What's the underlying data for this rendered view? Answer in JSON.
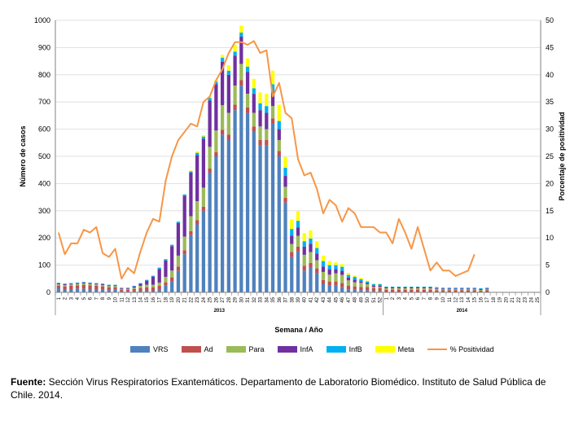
{
  "chart_data": {
    "type": "bar",
    "stacked": true,
    "xlabel": "Semana / Año",
    "ylabel": "Número de casos",
    "y2label": "Porcentaje de positividad",
    "ylim": [
      0,
      1000
    ],
    "yticks": [
      0,
      100,
      200,
      300,
      400,
      500,
      600,
      700,
      800,
      900,
      1000
    ],
    "y2lim": [
      0,
      50
    ],
    "y2ticks": [
      0,
      5,
      10,
      15,
      20,
      25,
      30,
      35,
      40,
      45,
      50
    ],
    "grid": true,
    "legend_position": "bottom",
    "years": [
      {
        "label": "2013",
        "weeks": 52
      },
      {
        "label": "2014",
        "weeks": 25
      }
    ],
    "categories": [
      "1",
      "2",
      "3",
      "4",
      "5",
      "6",
      "7",
      "8",
      "9",
      "10",
      "11",
      "12",
      "13",
      "14",
      "15",
      "16",
      "17",
      "18",
      "19",
      "20",
      "21",
      "22",
      "23",
      "24",
      "25",
      "26",
      "27",
      "28",
      "29",
      "30",
      "31",
      "32",
      "33",
      "34",
      "35",
      "36",
      "37",
      "38",
      "39",
      "40",
      "41",
      "42",
      "43",
      "44",
      "45",
      "46",
      "47",
      "48",
      "49",
      "50",
      "51",
      "52",
      "1",
      "2",
      "3",
      "4",
      "5",
      "6",
      "7",
      "8",
      "9",
      "10",
      "11",
      "12",
      "13",
      "14",
      "15",
      "16",
      "17",
      "18",
      "19",
      "20",
      "21",
      "22",
      "23",
      "24",
      "25"
    ],
    "series": [
      {
        "name": "VRS",
        "color": "#4f81bd",
        "values": [
          15,
          12,
          12,
          14,
          14,
          12,
          12,
          10,
          8,
          10,
          4,
          4,
          4,
          6,
          6,
          6,
          12,
          25,
          40,
          80,
          140,
          210,
          250,
          300,
          440,
          500,
          580,
          560,
          670,
          760,
          660,
          590,
          540,
          540,
          620,
          500,
          330,
          130,
          150,
          80,
          90,
          70,
          30,
          25,
          25,
          20,
          10,
          10,
          8,
          8,
          5,
          5,
          0,
          0,
          0,
          0,
          0,
          0,
          0,
          0,
          0,
          0,
          0,
          0,
          0,
          0,
          0,
          0,
          0,
          0,
          0,
          0,
          0,
          0,
          0,
          0,
          0
        ]
      },
      {
        "name": "Ad",
        "color": "#c0504d",
        "values": [
          10,
          10,
          12,
          12,
          14,
          14,
          12,
          12,
          10,
          8,
          6,
          6,
          8,
          10,
          12,
          12,
          12,
          12,
          15,
          15,
          15,
          15,
          15,
          15,
          15,
          15,
          18,
          20,
          20,
          20,
          20,
          20,
          20,
          20,
          20,
          20,
          18,
          18,
          18,
          18,
          18,
          18,
          15,
          15,
          15,
          14,
          14,
          12,
          12,
          12,
          10,
          10,
          10,
          10,
          10,
          10,
          10,
          10,
          10,
          10,
          8,
          8,
          8,
          8,
          8,
          8,
          8,
          6,
          8,
          0,
          0,
          0,
          0,
          0,
          0,
          0,
          0
        ]
      },
      {
        "name": "Para",
        "color": "#9bbb59",
        "values": [
          5,
          5,
          5,
          5,
          5,
          5,
          5,
          5,
          5,
          5,
          3,
          3,
          5,
          8,
          10,
          10,
          12,
          20,
          25,
          40,
          50,
          55,
          70,
          70,
          80,
          80,
          90,
          80,
          70,
          60,
          50,
          50,
          50,
          40,
          45,
          40,
          40,
          30,
          40,
          40,
          40,
          30,
          30,
          25,
          30,
          30,
          20,
          15,
          15,
          10,
          5,
          5,
          5,
          5,
          5,
          5,
          5,
          5,
          5,
          5,
          5,
          3,
          3,
          3,
          3,
          3,
          3,
          3,
          3,
          0,
          0,
          0,
          0,
          0,
          0,
          0,
          0
        ]
      },
      {
        "name": "InfA",
        "color": "#7030a0",
        "values": [
          3,
          3,
          3,
          3,
          3,
          3,
          3,
          3,
          3,
          3,
          3,
          3,
          5,
          8,
          15,
          30,
          50,
          60,
          90,
          120,
          150,
          160,
          170,
          180,
          170,
          170,
          160,
          140,
          110,
          100,
          80,
          70,
          60,
          60,
          50,
          40,
          40,
          30,
          30,
          30,
          30,
          25,
          20,
          20,
          15,
          15,
          10,
          10,
          5,
          5,
          5,
          5,
          3,
          3,
          3,
          3,
          3,
          3,
          3,
          3,
          3,
          3,
          3,
          3,
          3,
          3,
          3,
          3,
          3,
          0,
          0,
          0,
          0,
          0,
          0,
          0,
          0
        ]
      },
      {
        "name": "InfB",
        "color": "#00b0f0",
        "values": [
          2,
          2,
          2,
          2,
          2,
          2,
          2,
          2,
          2,
          2,
          1,
          1,
          2,
          2,
          3,
          3,
          5,
          5,
          5,
          5,
          5,
          5,
          8,
          8,
          10,
          10,
          15,
          15,
          15,
          15,
          20,
          20,
          25,
          25,
          30,
          30,
          30,
          25,
          25,
          20,
          20,
          20,
          20,
          15,
          15,
          15,
          10,
          10,
          8,
          5,
          5,
          5,
          3,
          3,
          3,
          3,
          3,
          3,
          3,
          3,
          3,
          3,
          3,
          3,
          3,
          3,
          3,
          3,
          3,
          0,
          0,
          0,
          0,
          0,
          0,
          0,
          0
        ]
      },
      {
        "name": "Meta",
        "color": "#ffff00",
        "values": [
          0,
          0,
          0,
          0,
          0,
          0,
          0,
          0,
          0,
          0,
          0,
          0,
          0,
          0,
          0,
          0,
          0,
          0,
          0,
          0,
          0,
          3,
          5,
          5,
          5,
          5,
          10,
          20,
          25,
          25,
          30,
          35,
          40,
          45,
          50,
          60,
          40,
          35,
          35,
          30,
          30,
          25,
          20,
          15,
          10,
          10,
          8,
          5,
          5,
          3,
          3,
          3,
          0,
          0,
          0,
          0,
          0,
          0,
          0,
          0,
          0,
          0,
          0,
          0,
          0,
          0,
          0,
          0,
          0,
          0,
          0,
          0,
          0,
          0,
          0,
          0,
          0
        ]
      },
      {
        "name": "% Positividad",
        "type": "line",
        "axis": "y2",
        "color": "#f79646",
        "values": [
          11,
          7,
          9,
          9,
          11.5,
          11,
          12,
          7.2,
          6.5,
          8,
          2.5,
          4.5,
          3.5,
          7.5,
          11,
          13.5,
          13,
          20.5,
          25,
          28,
          29.5,
          31,
          30.5,
          35,
          36,
          39,
          41,
          44,
          46,
          46,
          45.5,
          46.2,
          44,
          44.5,
          36,
          38.5,
          33,
          32,
          24.5,
          21.5,
          22,
          19,
          14.5,
          17,
          16,
          13,
          15.5,
          14.5,
          12,
          12,
          12,
          11,
          11,
          9,
          13.5,
          11,
          8,
          12,
          8,
          4,
          5.5,
          4,
          4,
          3,
          3.5,
          4,
          7,
          null,
          null,
          null,
          null,
          null,
          null,
          null,
          null,
          null,
          null
        ]
      }
    ]
  },
  "footnote": {
    "label": "Fuente:",
    "text": " Sección Virus Respiratorios Exantemáticos. Departamento de Laboratorio Biomédico. Instituto de Salud Pública de Chile. 2014."
  }
}
